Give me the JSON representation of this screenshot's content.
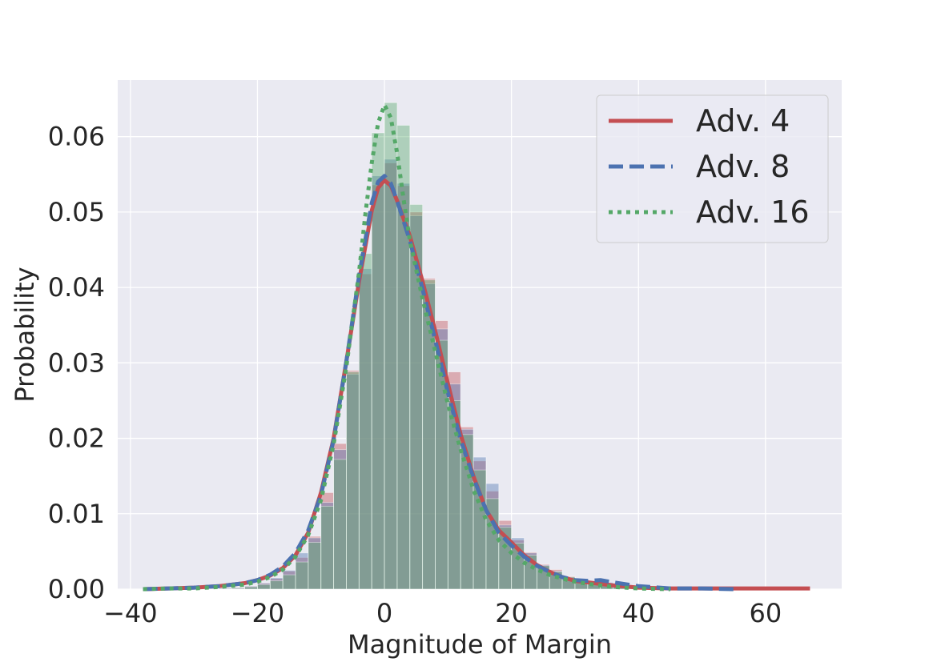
{
  "chart_data": {
    "type": "line",
    "title": "",
    "xlabel": "Magnitude of Margin",
    "ylabel": "Probability",
    "xlim": [
      -42,
      72
    ],
    "ylim": [
      0,
      0.0675
    ],
    "xticks": [
      -40,
      -20,
      0,
      20,
      40,
      60
    ],
    "xtick_labels": [
      "−40",
      "−20",
      "0",
      "20",
      "40",
      "60"
    ],
    "yticks": [
      0,
      0.01,
      0.02,
      0.03,
      0.04,
      0.05,
      0.06
    ],
    "ytick_labels": [
      "0.00",
      "0.01",
      "0.02",
      "0.03",
      "0.04",
      "0.05",
      "0.06"
    ],
    "grid": true,
    "legend_position": "top-right",
    "histograms": {
      "bin_edges": [
        -38,
        -36,
        -34,
        -32,
        -30,
        -28,
        -26,
        -24,
        -22,
        -20,
        -18,
        -16,
        -14,
        -12,
        -10,
        -8,
        -6,
        -4,
        -2,
        0,
        2,
        4,
        6,
        8,
        10,
        12,
        14,
        16,
        18,
        20,
        22,
        24,
        26,
        28,
        30,
        32,
        34,
        36,
        38,
        40,
        42,
        44,
        46,
        48,
        50,
        52,
        54,
        56,
        58,
        60,
        62,
        64,
        66
      ],
      "series": [
        {
          "name": "Adv. 4",
          "color": "#c44e52",
          "values": [
            0,
            0,
            0,
            0,
            0,
            0,
            0.0001,
            0.0002,
            0.0004,
            0.0008,
            0.0014,
            0.0024,
            0.0042,
            0.007,
            0.0128,
            0.0193,
            0.029,
            0.0418,
            0.0536,
            0.0565,
            0.0535,
            0.05,
            0.0412,
            0.0356,
            0.0288,
            0.0215,
            0.017,
            0.013,
            0.0091,
            0.0065,
            0.0049,
            0.0033,
            0.0026,
            0.0017,
            0.0012,
            0.0008,
            0.0007,
            0.0004,
            0.0002,
            0.0002,
            0.0001,
            0.0001,
            0.0001,
            0.0001,
            0,
            0,
            0,
            0,
            0,
            0,
            0,
            0
          ]
        },
        {
          "name": "Adv. 8",
          "color": "#4c72b0",
          "values": [
            0,
            0,
            0,
            0,
            0,
            0,
            0.0001,
            0.0002,
            0.0004,
            0.0008,
            0.0015,
            0.0025,
            0.0048,
            0.0068,
            0.0115,
            0.0185,
            0.0285,
            0.0425,
            0.0548,
            0.057,
            0.0538,
            0.0495,
            0.0405,
            0.0345,
            0.0272,
            0.0212,
            0.0175,
            0.014,
            0.0085,
            0.0068,
            0.0048,
            0.0032,
            0.0024,
            0.0016,
            0.0012,
            0.0011,
            0.0009,
            0.0006,
            0.0003,
            0.0002,
            0.0001,
            0.0001,
            0,
            0,
            0,
            0,
            0,
            0,
            0,
            0,
            0,
            0
          ]
        },
        {
          "name": "Adv. 16",
          "color": "#55a868",
          "values": [
            0,
            0,
            0,
            0,
            0,
            0,
            0,
            0.0001,
            0.0003,
            0.0006,
            0.0011,
            0.0019,
            0.0036,
            0.0062,
            0.011,
            0.0172,
            0.0288,
            0.0445,
            0.0605,
            0.0645,
            0.0615,
            0.051,
            0.041,
            0.033,
            0.025,
            0.0205,
            0.0158,
            0.012,
            0.0082,
            0.0061,
            0.0045,
            0.0031,
            0.0023,
            0.0016,
            0.0011,
            0.0008,
            0.0005,
            0.0003,
            0.0002,
            0.0001,
            0.0001,
            0,
            0,
            0,
            0,
            0,
            0,
            0,
            0,
            0,
            0,
            0
          ]
        }
      ]
    },
    "series": [
      {
        "name": "Adv. 4",
        "color": "#c44e52",
        "linestyle": "solid",
        "x": [
          -38,
          -34,
          -30,
          -26,
          -22,
          -20,
          -18,
          -16,
          -14,
          -12,
          -10,
          -8,
          -6,
          -4,
          -2,
          -1,
          0,
          1,
          2,
          4,
          6,
          8,
          10,
          12,
          14,
          16,
          18,
          20,
          22,
          24,
          26,
          28,
          30,
          32,
          34,
          36,
          40,
          45,
          50,
          55,
          60,
          67
        ],
        "y": [
          0,
          0.0001,
          0.0002,
          0.0004,
          0.0008,
          0.0012,
          0.0018,
          0.0028,
          0.0045,
          0.0075,
          0.0128,
          0.02,
          0.0302,
          0.0408,
          0.0502,
          0.0532,
          0.0542,
          0.0535,
          0.0515,
          0.0468,
          0.0408,
          0.0342,
          0.0272,
          0.0205,
          0.015,
          0.0105,
          0.0078,
          0.0062,
          0.0045,
          0.0032,
          0.0023,
          0.0016,
          0.0011,
          0.0009,
          0.0007,
          0.0005,
          0.0002,
          0.0001,
          0.0001,
          0.0001,
          0.0001,
          0.0001
        ]
      },
      {
        "name": "Adv. 8",
        "color": "#4c72b0",
        "linestyle": "dashed",
        "x": [
          -38,
          -34,
          -30,
          -26,
          -22,
          -20,
          -18,
          -16,
          -14,
          -12,
          -10,
          -8,
          -6,
          -4,
          -2,
          -1,
          0,
          1,
          2,
          4,
          6,
          8,
          10,
          12,
          14,
          16,
          18,
          20,
          22,
          24,
          26,
          28,
          30,
          32,
          34,
          36,
          40,
          45,
          50,
          55
        ],
        "y": [
          0,
          0.0001,
          0.0002,
          0.0004,
          0.0008,
          0.0012,
          0.0019,
          0.003,
          0.0048,
          0.0078,
          0.0125,
          0.0198,
          0.0302,
          0.0415,
          0.0512,
          0.054,
          0.0548,
          0.0538,
          0.0515,
          0.0462,
          0.0398,
          0.033,
          0.026,
          0.0198,
          0.0148,
          0.0105,
          0.0075,
          0.0058,
          0.0043,
          0.0031,
          0.0023,
          0.0016,
          0.0012,
          0.0011,
          0.0012,
          0.0009,
          0.0004,
          0.0001,
          0.0001,
          0
        ]
      },
      {
        "name": "Adv. 16",
        "color": "#55a868",
        "linestyle": "dotted",
        "x": [
          -38,
          -34,
          -30,
          -26,
          -22,
          -20,
          -18,
          -16,
          -14,
          -12,
          -10,
          -8,
          -6,
          -4,
          -3,
          -2,
          -1,
          0,
          1,
          2,
          3,
          4,
          6,
          8,
          10,
          12,
          14,
          16,
          18,
          20,
          22,
          24,
          26,
          28,
          30,
          32,
          34,
          36,
          40,
          45
        ],
        "y": [
          0,
          0.0001,
          0.0001,
          0.0003,
          0.0006,
          0.001,
          0.0016,
          0.0026,
          0.0043,
          0.0072,
          0.0118,
          0.0192,
          0.0295,
          0.042,
          0.0498,
          0.0565,
          0.0618,
          0.0642,
          0.0625,
          0.0578,
          0.0518,
          0.0462,
          0.0385,
          0.0315,
          0.0245,
          0.0185,
          0.0132,
          0.0092,
          0.0065,
          0.0048,
          0.0035,
          0.0026,
          0.0019,
          0.0014,
          0.001,
          0.0007,
          0.0005,
          0.0003,
          0.0001,
          0
        ]
      }
    ]
  }
}
